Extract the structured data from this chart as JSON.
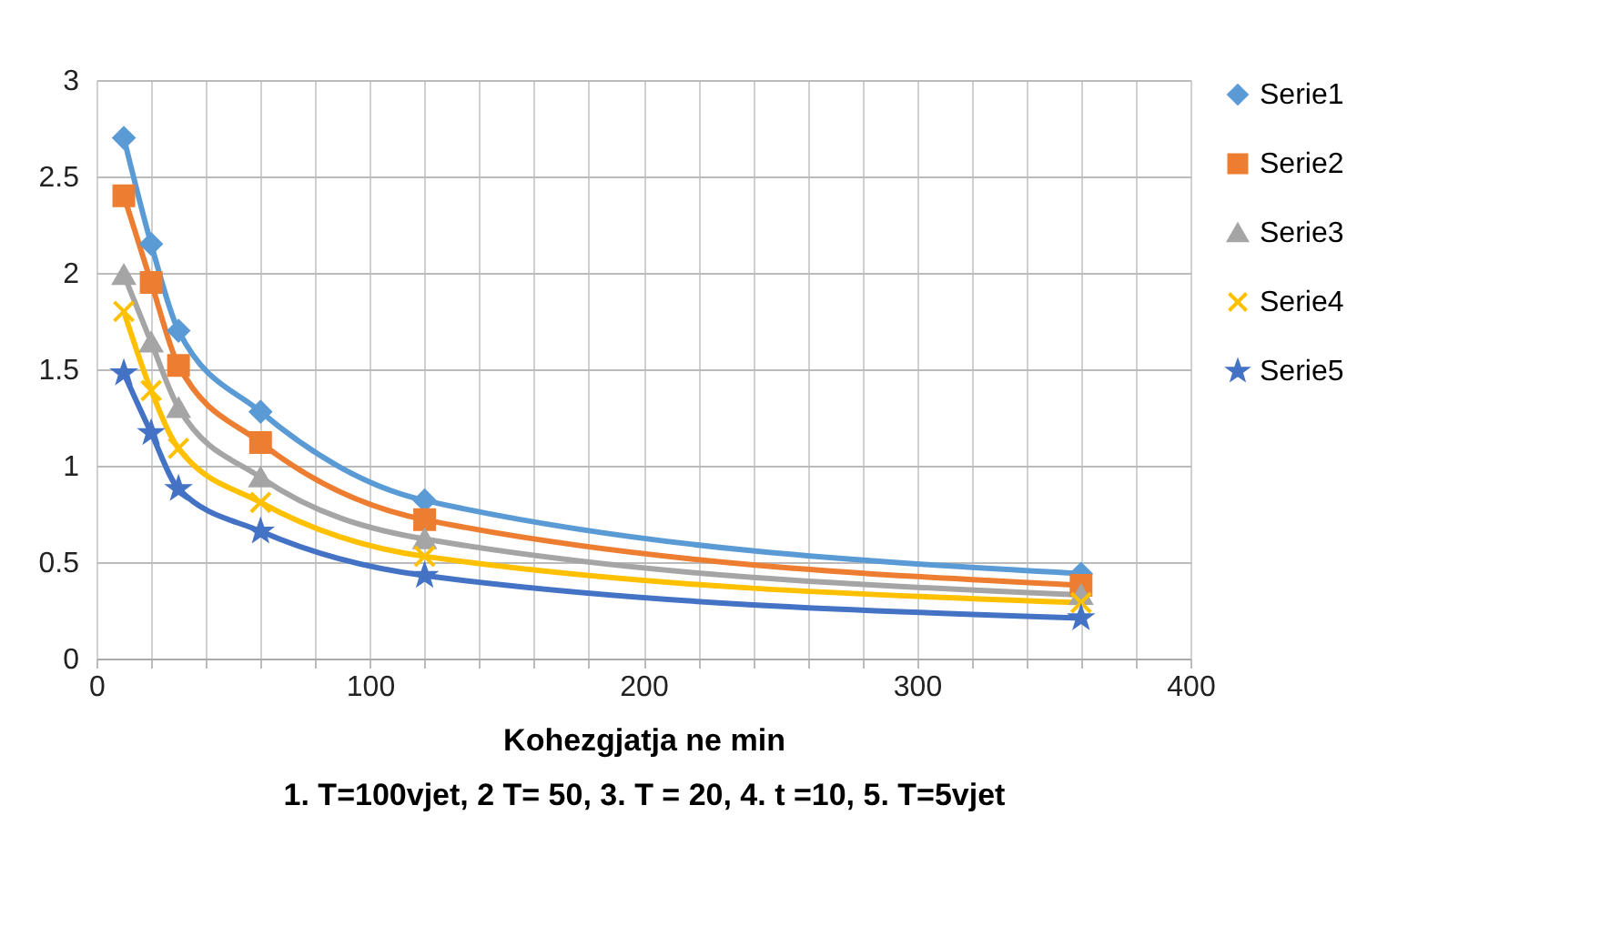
{
  "chart_data": {
    "type": "line",
    "xlabel": "Kohezgjatja ne min",
    "annotations": [
      "1. T=100vjet, 2 T= 50, 3. T = 20, 4. t =10, 5. T=5vjet"
    ],
    "x": [
      10,
      20,
      30,
      60,
      120,
      360
    ],
    "series": [
      {
        "name": "Serie1",
        "color": "#5b9bd5",
        "marker": "diamond",
        "values": [
          2.7,
          2.15,
          1.7,
          1.28,
          0.82,
          0.44
        ]
      },
      {
        "name": "Serie2",
        "color": "#ed7d31",
        "marker": "square",
        "values": [
          2.4,
          1.95,
          1.52,
          1.12,
          0.72,
          0.38
        ]
      },
      {
        "name": "Serie3",
        "color": "#a5a5a5",
        "marker": "triangle",
        "values": [
          1.99,
          1.64,
          1.3,
          0.94,
          0.62,
          0.33
        ]
      },
      {
        "name": "Serie4",
        "color": "#ffc000",
        "marker": "cross",
        "values": [
          1.8,
          1.39,
          1.09,
          0.81,
          0.53,
          0.29
        ]
      },
      {
        "name": "Serie5",
        "color": "#4472c4",
        "marker": "star",
        "values": [
          1.48,
          1.17,
          0.88,
          0.66,
          0.43,
          0.21
        ]
      }
    ],
    "xlim": [
      0,
      400
    ],
    "xticks": [
      0,
      {
        "value": 20,
        "label": null
      },
      {
        "value": 40,
        "label": null
      },
      {
        "value": 60,
        "label": null
      },
      {
        "value": 80,
        "label": null
      },
      100,
      {
        "value": 120,
        "label": null
      },
      {
        "value": 140,
        "label": null
      },
      {
        "value": 160,
        "label": null
      },
      {
        "value": 180,
        "label": null
      },
      200,
      {
        "value": 220,
        "label": null
      },
      {
        "value": 240,
        "label": null
      },
      {
        "value": 260,
        "label": null
      },
      {
        "value": 280,
        "label": null
      },
      300,
      {
        "value": 320,
        "label": null
      },
      {
        "value": 340,
        "label": null
      },
      {
        "value": 360,
        "label": null
      },
      {
        "value": 380,
        "label": null
      },
      400
    ],
    "ylim": [
      0,
      3
    ],
    "yticks": [
      0,
      0.5,
      1,
      1.5,
      2,
      2.5,
      3
    ],
    "grid": true,
    "legend": "right",
    "line_style": "solid"
  }
}
